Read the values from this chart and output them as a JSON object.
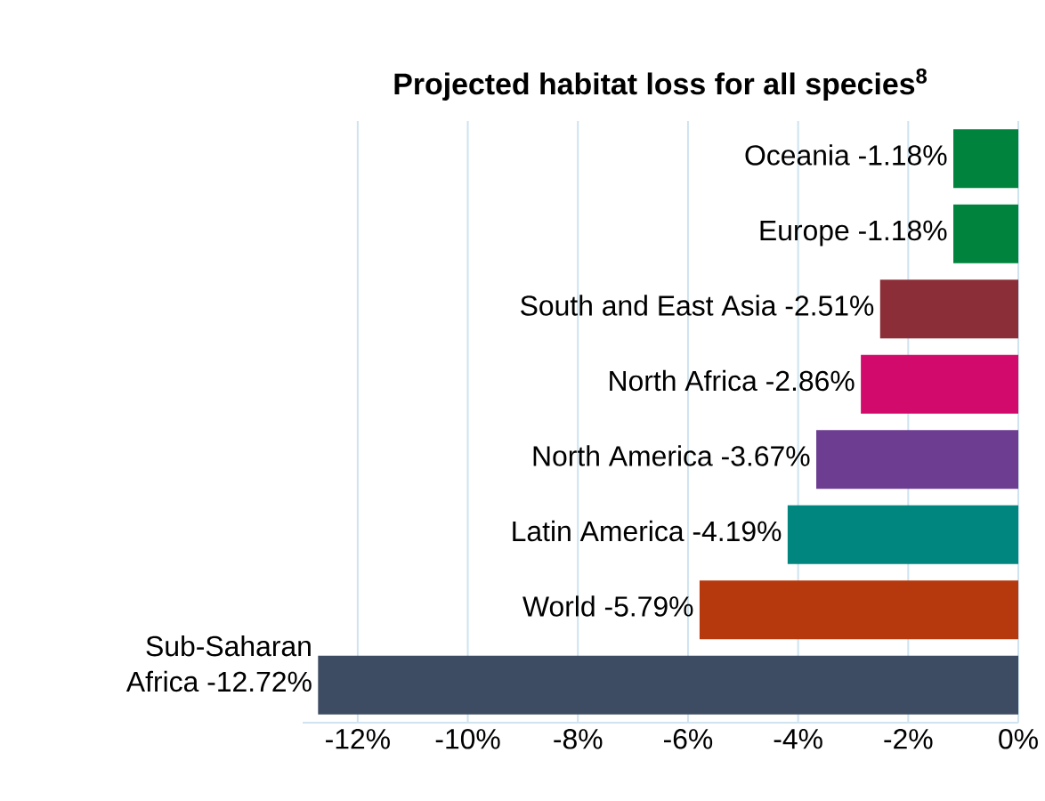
{
  "chart_data": {
    "type": "bar",
    "orientation": "horizontal",
    "title": "Projected habitat loss for all species$^{8}$",
    "categories": [
      "Oceania",
      "Europe",
      "South and East Asia",
      "North Africa",
      "North America",
      "Latin America",
      "World",
      "Sub-Saharan Africa"
    ],
    "values": [
      -1.18,
      -1.18,
      -2.51,
      -2.86,
      -3.67,
      -4.19,
      -5.79,
      -12.72
    ],
    "value_labels": [
      "-1.18%",
      "-1.18%",
      "-2.51%",
      "-2.86%",
      "-3.67%",
      "-4.19%",
      "-5.79%",
      "-12.72%"
    ],
    "colors": [
      "#00843d",
      "#00843d",
      "#8b2e38",
      "#d20a6b",
      "#6c3d91",
      "#00867f",
      "#b5390c",
      "#3d4c63"
    ],
    "xlim": [
      -13,
      0
    ],
    "xticks": [
      {
        "value": -12,
        "label": "-12%"
      },
      {
        "value": -10,
        "label": "-10%"
      },
      {
        "value": -8,
        "label": "-8%"
      },
      {
        "value": -6,
        "label": "-6%"
      },
      {
        "value": -4,
        "label": "-4%"
      },
      {
        "value": -2,
        "label": "-2%"
      },
      {
        "value": 0,
        "label": "0%"
      }
    ],
    "grid": "x"
  }
}
